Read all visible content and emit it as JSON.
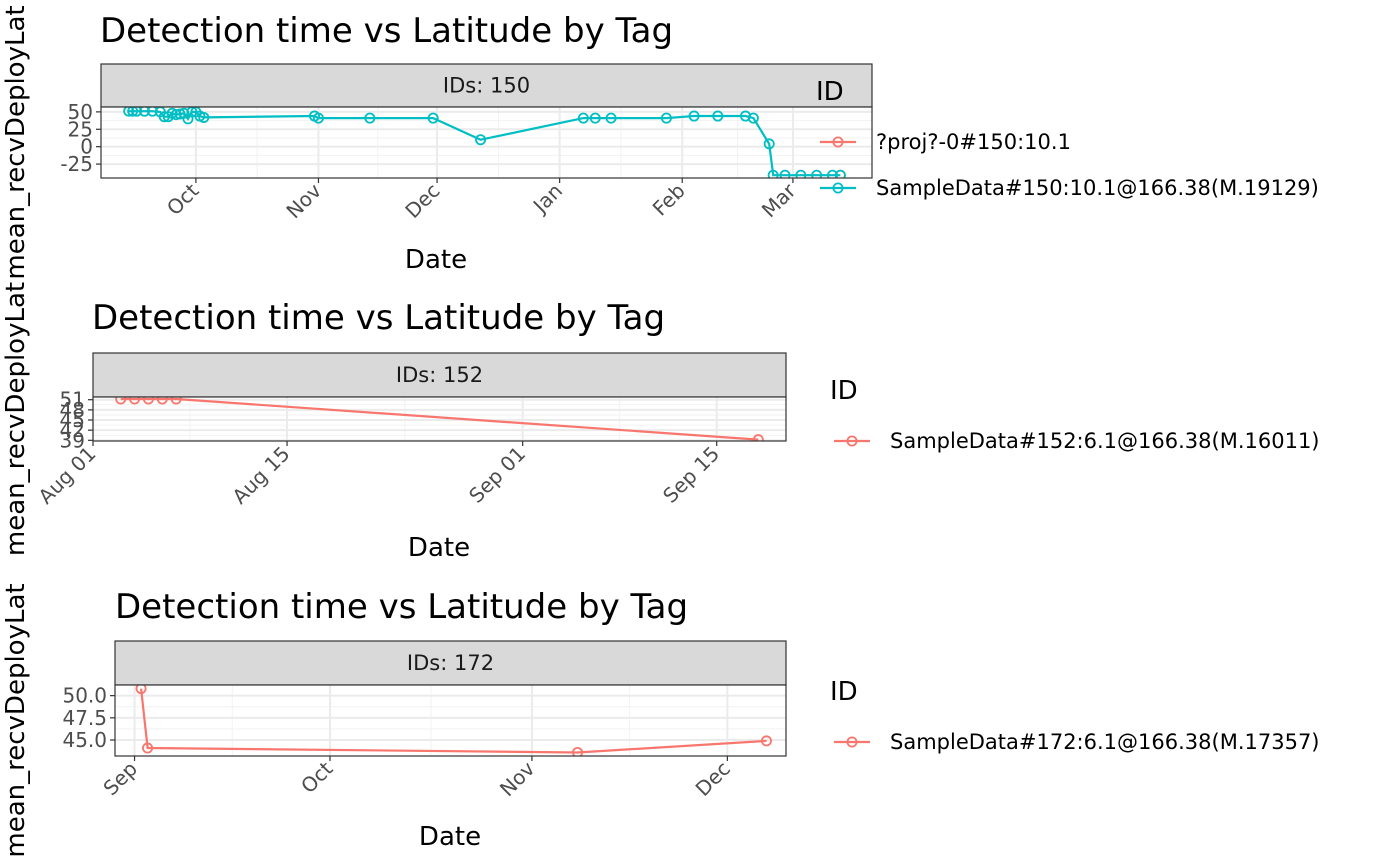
{
  "chart_data": [
    {
      "type": "line",
      "title": "Detection time vs Latitude by Tag",
      "xlabel": "Date",
      "ylabel": "mean_recvDeployLat",
      "strip_label": "IDs: 150",
      "legend_title": "ID",
      "x_ticks": [
        {
          "label": "Oct",
          "date": "2016-10-01"
        },
        {
          "label": "Nov",
          "date": "2016-11-01"
        },
        {
          "label": "Dec",
          "date": "2016-12-01"
        },
        {
          "label": "Jan",
          "date": "2017-01-01"
        },
        {
          "label": "Feb",
          "date": "2017-02-01"
        },
        {
          "label": "Mar",
          "date": "2017-03-01"
        }
      ],
      "y_ticks": [
        -25,
        0,
        25,
        50
      ],
      "xlim": [
        "2016-09-07",
        "2017-03-21"
      ],
      "ylim": [
        -45,
        57
      ],
      "series": [
        {
          "name": "?proj?-0#150:10.1",
          "color": "#F8766D",
          "points": [
            [
              "2017-03-13",
              -41
            ]
          ]
        },
        {
          "name": "SampleData#150:10.1@166.38(M.19129)",
          "color": "#00BFC4",
          "points": [
            [
              "2016-09-14",
              51
            ],
            [
              "2016-09-15",
              51
            ],
            [
              "2016-09-16",
              51
            ],
            [
              "2016-09-18",
              51
            ],
            [
              "2016-09-20",
              51
            ],
            [
              "2016-09-22",
              50
            ],
            [
              "2016-09-23",
              43
            ],
            [
              "2016-09-24",
              43
            ],
            [
              "2016-09-25",
              48
            ],
            [
              "2016-09-26",
              46
            ],
            [
              "2016-09-27",
              47
            ],
            [
              "2016-09-28",
              48
            ],
            [
              "2016-09-29",
              40
            ],
            [
              "2016-09-30",
              50
            ],
            [
              "2016-10-01",
              50
            ],
            [
              "2016-10-02",
              44
            ],
            [
              "2016-10-03",
              42
            ],
            [
              "2016-10-31",
              44
            ],
            [
              "2016-11-01",
              41
            ],
            [
              "2016-11-14",
              41
            ],
            [
              "2016-11-30",
              41
            ],
            [
              "2016-12-12",
              10
            ],
            [
              "2017-01-07",
              41
            ],
            [
              "2017-01-10",
              41
            ],
            [
              "2017-01-14",
              41
            ],
            [
              "2017-01-28",
              41
            ],
            [
              "2017-02-04",
              44
            ],
            [
              "2017-02-10",
              44
            ],
            [
              "2017-02-17",
              44
            ],
            [
              "2017-02-19",
              41
            ],
            [
              "2017-02-23",
              4
            ],
            [
              "2017-02-24",
              -41
            ],
            [
              "2017-02-27",
              -41
            ],
            [
              "2017-03-03",
              -41
            ],
            [
              "2017-03-07",
              -41
            ],
            [
              "2017-03-11",
              -41
            ],
            [
              "2017-03-13",
              -41
            ]
          ]
        }
      ]
    },
    {
      "type": "line",
      "title": "Detection time vs Latitude by Tag",
      "xlabel": "Date",
      "ylabel": "mean_recvDeployLat",
      "strip_label": "IDs: 152",
      "legend_title": "ID",
      "x_ticks": [
        {
          "label": "Aug 01",
          "date": "2016-08-01"
        },
        {
          "label": "Aug 15",
          "date": "2016-08-15"
        },
        {
          "label": "Sep 01",
          "date": "2016-09-01"
        },
        {
          "label": "Sep 15",
          "date": "2016-09-15"
        }
      ],
      "y_ticks": [
        39,
        42,
        45,
        48,
        51
      ],
      "xlim": [
        "2016-08-01",
        "2016-09-20"
      ],
      "ylim": [
        38.8,
        51.8
      ],
      "series": [
        {
          "name": "SampleData#152:6.1@166.38(M.16011)",
          "color": "#F8766D",
          "points": [
            [
              "2016-08-03",
              51.2
            ],
            [
              "2016-08-04",
              51.2
            ],
            [
              "2016-08-05",
              51.2
            ],
            [
              "2016-08-06",
              51.2
            ],
            [
              "2016-08-07",
              51.2
            ],
            [
              "2016-09-18",
              39.2
            ]
          ]
        }
      ]
    },
    {
      "type": "line",
      "title": "Detection time vs Latitude by Tag",
      "xlabel": "Date",
      "ylabel": "mean_recvDeployLat",
      "strip_label": "IDs: 172",
      "legend_title": "ID",
      "x_ticks": [
        {
          "label": "Sep",
          "date": "2016-09-01"
        },
        {
          "label": "Oct",
          "date": "2016-10-01"
        },
        {
          "label": "Nov",
          "date": "2016-11-01"
        },
        {
          "label": "Dec",
          "date": "2016-12-01"
        }
      ],
      "y_ticks": [
        45.0,
        47.5,
        50.0
      ],
      "xlim": [
        "2016-08-29",
        "2016-12-10"
      ],
      "ylim": [
        43.2,
        51.2
      ],
      "series": [
        {
          "name": "SampleData#172:6.1@166.38(M.17357)",
          "color": "#F8766D",
          "points": [
            [
              "2016-09-02",
              50.8
            ],
            [
              "2016-09-03",
              44.1
            ],
            [
              "2016-11-08",
              43.6
            ],
            [
              "2016-12-07",
              44.9
            ]
          ]
        }
      ]
    }
  ]
}
